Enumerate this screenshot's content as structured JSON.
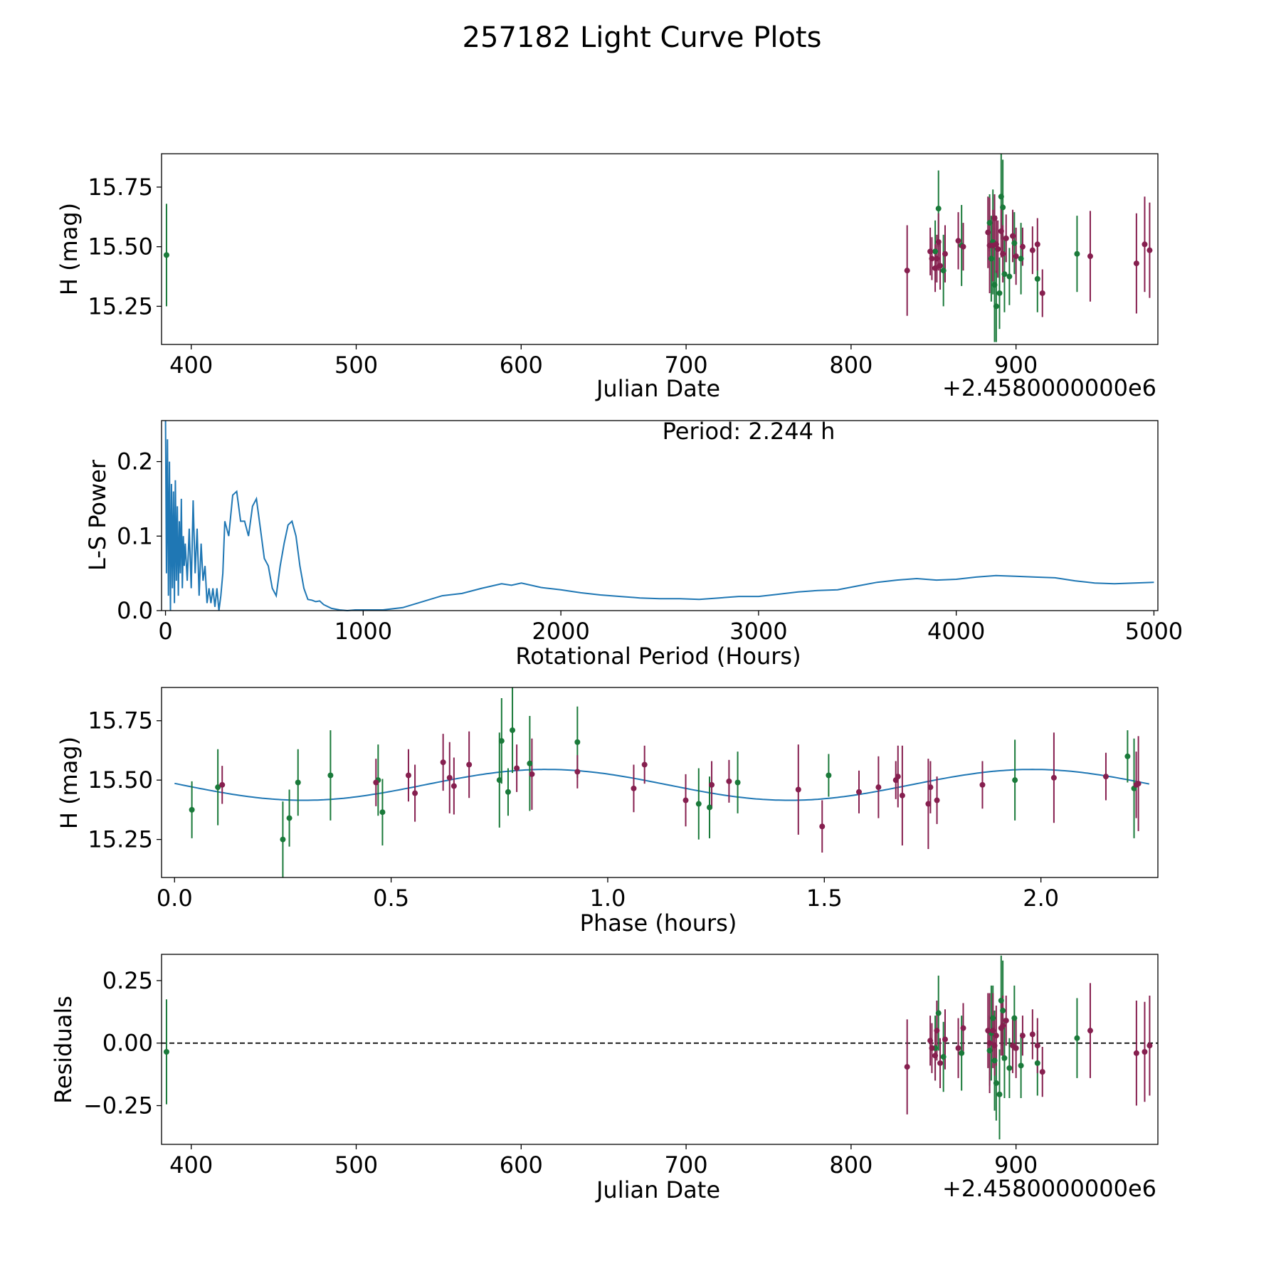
{
  "figure_title": "257182 Light Curve Plots",
  "colors": {
    "green": "#1a7a3a",
    "maroon": "#861f4f",
    "line": "#1f77b4",
    "axis": "#000000"
  },
  "chart_data": [
    {
      "id": "lightcurve",
      "type": "scatter",
      "xlabel": "Julian Date",
      "ylabel": "H (mag)",
      "offset_label": "+2.4580000000e6",
      "xlim": [
        382,
        986
      ],
      "ylim": [
        15.09,
        15.89
      ],
      "xticks": [
        400,
        500,
        600,
        700,
        800,
        900
      ],
      "xtick_labels": [
        "400",
        "500",
        "600",
        "700",
        "800",
        "900"
      ],
      "yticks": [
        15.25,
        15.5,
        15.75
      ],
      "ytick_labels": [
        "15.25",
        "15.50",
        "15.75"
      ],
      "series": [
        {
          "name": "green",
          "color": "green",
          "points": [
            [
              385,
              15.465,
              0.215
            ],
            [
              851,
              15.48,
              0.13
            ],
            [
              853,
              15.66,
              0.16
            ],
            [
              856,
              15.4,
              0.15
            ],
            [
              867,
              15.505,
              0.17
            ],
            [
              884,
              15.6,
              0.12
            ],
            [
              885,
              15.45,
              0.18
            ],
            [
              886,
              15.52,
              0.22
            ],
            [
              887,
              15.34,
              0.24
            ],
            [
              888,
              15.25,
              0.15
            ],
            [
              890,
              15.305,
              0.15
            ],
            [
              891,
              15.71,
              0.18
            ],
            [
              892,
              15.665,
              0.2
            ],
            [
              893,
              15.385,
              0.16
            ],
            [
              896,
              15.375,
              0.12
            ],
            [
              899,
              15.515,
              0.13
            ],
            [
              903,
              15.45,
              0.15
            ],
            [
              913,
              15.365,
              0.14
            ],
            [
              937,
              15.47,
              0.16
            ]
          ]
        },
        {
          "name": "maroon",
          "color": "maroon",
          "points": [
            [
              834,
              15.4,
              0.19
            ],
            [
              848,
              15.48,
              0.1
            ],
            [
              849,
              15.45,
              0.09
            ],
            [
              851,
              15.41,
              0.1
            ],
            [
              852,
              15.45,
              0.1
            ],
            [
              853,
              15.52,
              0.12
            ],
            [
              854,
              15.42,
              0.1
            ],
            [
              857,
              15.47,
              0.12
            ],
            [
              865,
              15.525,
              0.12
            ],
            [
              868,
              15.5,
              0.1
            ],
            [
              883,
              15.56,
              0.15
            ],
            [
              884,
              15.505,
              0.2
            ],
            [
              886,
              15.505,
              0.15
            ],
            [
              887,
              15.62,
              0.1
            ],
            [
              888,
              15.51,
              0.12
            ],
            [
              889,
              15.49,
              0.12
            ],
            [
              891,
              15.565,
              0.11
            ],
            [
              892,
              15.47,
              0.12
            ],
            [
              894,
              15.535,
              0.1
            ],
            [
              898,
              15.545,
              0.11
            ],
            [
              900,
              15.46,
              0.12
            ],
            [
              904,
              15.5,
              0.08
            ],
            [
              910,
              15.485,
              0.1
            ],
            [
              913,
              15.51,
              0.11
            ],
            [
              916,
              15.305,
              0.1
            ],
            [
              945,
              15.46,
              0.19
            ],
            [
              973,
              15.43,
              0.21
            ],
            [
              978,
              15.51,
              0.2
            ],
            [
              981,
              15.485,
              0.2
            ]
          ]
        }
      ]
    },
    {
      "id": "periodogram",
      "type": "line",
      "xlabel": "Rotational Period (Hours)",
      "ylabel": "L-S Power",
      "annotation": "Period: 2.244 h",
      "xlim": [
        -20,
        5020
      ],
      "ylim": [
        0,
        0.255
      ],
      "xticks": [
        0,
        1000,
        2000,
        3000,
        4000,
        5000
      ],
      "xtick_labels": [
        "0",
        "1000",
        "2000",
        "3000",
        "4000",
        "5000"
      ],
      "yticks": [
        0.0,
        0.1,
        0.2
      ],
      "ytick_labels": [
        "0.0",
        "0.1",
        "0.2"
      ],
      "x": [
        0,
        5,
        10,
        15,
        20,
        25,
        30,
        35,
        40,
        45,
        50,
        55,
        60,
        65,
        70,
        75,
        80,
        85,
        90,
        95,
        100,
        110,
        120,
        130,
        140,
        150,
        160,
        170,
        180,
        190,
        200,
        210,
        220,
        230,
        240,
        250,
        260,
        270,
        280,
        290,
        300,
        320,
        340,
        360,
        380,
        400,
        420,
        440,
        460,
        480,
        500,
        520,
        540,
        560,
        580,
        600,
        620,
        640,
        660,
        680,
        700,
        720,
        740,
        760,
        780,
        800,
        840,
        880,
        920,
        960,
        1000,
        1100,
        1200,
        1300,
        1400,
        1500,
        1600,
        1700,
        1750,
        1800,
        1900,
        2000,
        2100,
        2200,
        2300,
        2400,
        2500,
        2600,
        2700,
        2800,
        2900,
        3000,
        3100,
        3200,
        3300,
        3400,
        3500,
        3600,
        3700,
        3800,
        3900,
        4000,
        4100,
        4200,
        4300,
        4400,
        4500,
        4600,
        4700,
        4800,
        4900,
        5000
      ],
      "y": [
        0.255,
        0.05,
        0.23,
        0.02,
        0.2,
        0.0,
        0.17,
        0.03,
        0.16,
        0.01,
        0.175,
        0.04,
        0.14,
        0.02,
        0.12,
        0.05,
        0.15,
        0.03,
        0.1,
        0.06,
        0.09,
        0.04,
        0.11,
        0.03,
        0.148,
        0.05,
        0.11,
        0.02,
        0.09,
        0.04,
        0.06,
        0.01,
        0.03,
        0.01,
        0.03,
        0.005,
        0.03,
        0.0,
        0.02,
        0.05,
        0.12,
        0.1,
        0.155,
        0.16,
        0.12,
        0.12,
        0.1,
        0.14,
        0.15,
        0.11,
        0.07,
        0.06,
        0.03,
        0.02,
        0.06,
        0.09,
        0.115,
        0.12,
        0.1,
        0.06,
        0.03,
        0.015,
        0.014,
        0.012,
        0.013,
        0.008,
        0.003,
        0.001,
        0.0,
        0.001,
        0.001,
        0.001,
        0.004,
        0.012,
        0.02,
        0.023,
        0.03,
        0.036,
        0.034,
        0.037,
        0.031,
        0.028,
        0.024,
        0.021,
        0.019,
        0.017,
        0.016,
        0.016,
        0.015,
        0.017,
        0.019,
        0.019,
        0.022,
        0.025,
        0.027,
        0.028,
        0.033,
        0.038,
        0.041,
        0.043,
        0.041,
        0.042,
        0.045,
        0.047,
        0.046,
        0.045,
        0.044,
        0.04,
        0.037,
        0.036,
        0.037,
        0.038
      ]
    },
    {
      "id": "phased",
      "type": "scatter",
      "xlabel": "Phase (hours)",
      "ylabel": "H (mag)",
      "xlim": [
        -0.03,
        2.27
      ],
      "ylim": [
        15.09,
        15.89
      ],
      "xticks": [
        0.0,
        0.5,
        1.0,
        1.5,
        2.0
      ],
      "xtick_labels": [
        "0.0",
        "0.5",
        "1.0",
        "1.5",
        "2.0"
      ],
      "yticks": [
        15.25,
        15.5,
        15.75
      ],
      "ytick_labels": [
        "15.25",
        "15.50",
        "15.75"
      ],
      "fit": {
        "mean": 15.48,
        "amplitude": 0.065,
        "period": 1.122,
        "peak_phase": 0.858
      },
      "series": [
        {
          "name": "green",
          "color": "green",
          "points": [
            [
              0.04,
              15.375,
              0.12
            ],
            [
              0.1,
              15.47,
              0.16
            ],
            [
              0.25,
              15.25,
              0.16
            ],
            [
              0.265,
              15.34,
              0.12
            ],
            [
              0.285,
              15.49,
              0.14
            ],
            [
              0.36,
              15.52,
              0.19
            ],
            [
              0.47,
              15.5,
              0.15
            ],
            [
              0.48,
              15.365,
              0.14
            ],
            [
              0.75,
              15.5,
              0.2
            ],
            [
              0.755,
              15.665,
              0.18
            ],
            [
              0.77,
              15.45,
              0.1
            ],
            [
              0.78,
              15.71,
              0.18
            ],
            [
              0.82,
              15.57,
              0.2
            ],
            [
              0.93,
              15.66,
              0.15
            ],
            [
              1.21,
              15.4,
              0.15
            ],
            [
              1.235,
              15.385,
              0.13
            ],
            [
              1.3,
              15.49,
              0.13
            ],
            [
              1.51,
              15.52,
              0.09
            ],
            [
              1.94,
              15.5,
              0.17
            ],
            [
              2.2,
              15.6,
              0.11
            ],
            [
              2.215,
              15.465,
              0.21
            ]
          ]
        },
        {
          "name": "maroon",
          "color": "maroon",
          "points": [
            [
              0.11,
              15.48,
              0.08
            ],
            [
              0.465,
              15.49,
              0.1
            ],
            [
              0.54,
              15.52,
              0.11
            ],
            [
              0.555,
              15.445,
              0.12
            ],
            [
              0.62,
              15.575,
              0.12
            ],
            [
              0.635,
              15.51,
              0.15
            ],
            [
              0.645,
              15.475,
              0.12
            ],
            [
              0.68,
              15.565,
              0.14
            ],
            [
              0.79,
              15.55,
              0.1
            ],
            [
              0.825,
              15.525,
              0.15
            ],
            [
              0.93,
              15.535,
              0.07
            ],
            [
              1.06,
              15.465,
              0.1
            ],
            [
              1.085,
              15.565,
              0.08
            ],
            [
              1.18,
              15.415,
              0.11
            ],
            [
              1.24,
              15.48,
              0.1
            ],
            [
              1.28,
              15.495,
              0.09
            ],
            [
              1.44,
              15.46,
              0.19
            ],
            [
              1.495,
              15.305,
              0.11
            ],
            [
              1.58,
              15.45,
              0.09
            ],
            [
              1.625,
              15.47,
              0.13
            ],
            [
              1.665,
              15.5,
              0.08
            ],
            [
              1.67,
              15.515,
              0.13
            ],
            [
              1.68,
              15.435,
              0.21
            ],
            [
              1.74,
              15.4,
              0.19
            ],
            [
              1.745,
              15.47,
              0.11
            ],
            [
              1.76,
              15.415,
              0.1
            ],
            [
              1.865,
              15.48,
              0.1
            ],
            [
              2.03,
              15.51,
              0.19
            ],
            [
              2.15,
              15.515,
              0.1
            ],
            [
              2.225,
              15.485,
              0.2
            ],
            [
              2.22,
              15.48,
              0.14
            ]
          ]
        }
      ]
    },
    {
      "id": "residuals",
      "type": "scatter",
      "xlabel": "Julian Date",
      "ylabel": "Residuals",
      "offset_label": "+2.4580000000e6",
      "xlim": [
        382,
        986
      ],
      "ylim": [
        -0.405,
        0.355
      ],
      "xticks": [
        400,
        500,
        600,
        700,
        800,
        900
      ],
      "xtick_labels": [
        "400",
        "500",
        "600",
        "700",
        "800",
        "900"
      ],
      "yticks": [
        -0.25,
        0.0,
        0.25
      ],
      "ytick_labels": [
        "−0.25",
        "0.00",
        "0.25"
      ],
      "zero_line": 0,
      "series": [
        {
          "name": "green",
          "color": "green",
          "points": [
            [
              385,
              -0.035,
              0.21
            ],
            [
              851,
              -0.02,
              0.13
            ],
            [
              853,
              0.12,
              0.15
            ],
            [
              856,
              -0.055,
              0.14
            ],
            [
              867,
              -0.04,
              0.15
            ],
            [
              884,
              -0.03,
              0.14
            ],
            [
              885,
              0.04,
              0.19
            ],
            [
              886,
              0.1,
              0.13
            ],
            [
              887,
              -0.07,
              0.2
            ],
            [
              888,
              -0.16,
              0.15
            ],
            [
              890,
              -0.205,
              0.18
            ],
            [
              891,
              0.17,
              0.18
            ],
            [
              892,
              0.13,
              0.2
            ],
            [
              893,
              -0.06,
              0.16
            ],
            [
              896,
              -0.1,
              0.12
            ],
            [
              899,
              0.1,
              0.13
            ],
            [
              903,
              -0.09,
              0.13
            ],
            [
              913,
              -0.08,
              0.13
            ],
            [
              937,
              0.02,
              0.16
            ]
          ]
        },
        {
          "name": "maroon",
          "color": "maroon",
          "points": [
            [
              834,
              -0.095,
              0.19
            ],
            [
              848,
              0.01,
              0.1
            ],
            [
              849,
              -0.02,
              0.1
            ],
            [
              851,
              -0.05,
              0.1
            ],
            [
              852,
              0.05,
              0.12
            ],
            [
              854,
              -0.08,
              0.1
            ],
            [
              857,
              0.015,
              0.12
            ],
            [
              865,
              -0.02,
              0.12
            ],
            [
              868,
              0.06,
              0.1
            ],
            [
              883,
              0.05,
              0.15
            ],
            [
              884,
              0.0,
              0.2
            ],
            [
              886,
              0.05,
              0.15
            ],
            [
              887,
              -0.01,
              0.12
            ],
            [
              888,
              0.03,
              0.12
            ],
            [
              891,
              0.06,
              0.11
            ],
            [
              892,
              0.07,
              0.12
            ],
            [
              894,
              0.09,
              0.1
            ],
            [
              898,
              -0.01,
              0.11
            ],
            [
              900,
              -0.02,
              0.12
            ],
            [
              904,
              0.03,
              0.08
            ],
            [
              910,
              0.035,
              0.1
            ],
            [
              913,
              -0.01,
              0.11
            ],
            [
              916,
              -0.115,
              0.1
            ],
            [
              945,
              0.05,
              0.19
            ],
            [
              973,
              -0.04,
              0.21
            ],
            [
              978,
              -0.035,
              0.2
            ],
            [
              981,
              -0.01,
              0.2
            ]
          ]
        }
      ]
    }
  ]
}
